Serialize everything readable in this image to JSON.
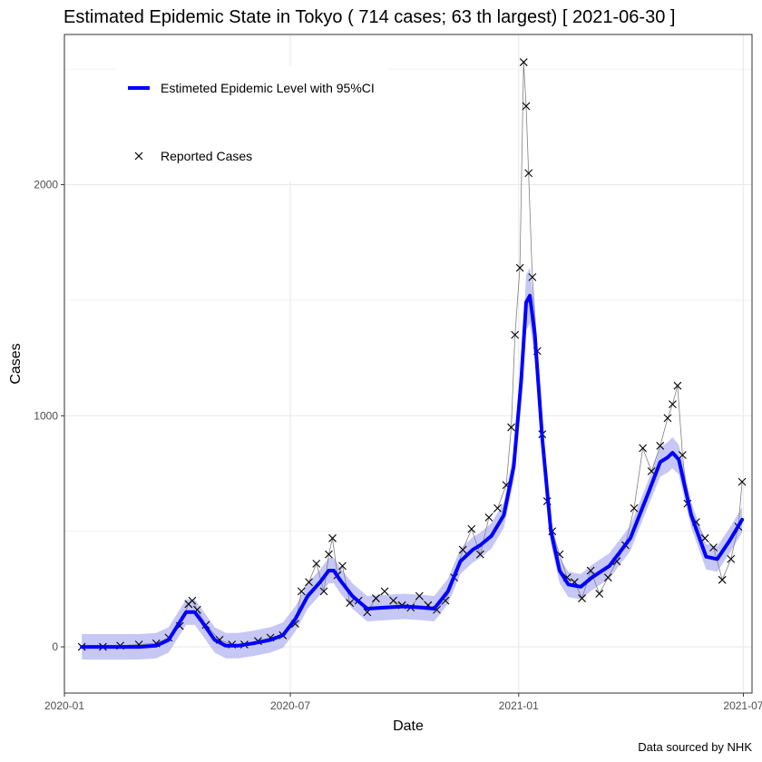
{
  "chart_data": {
    "type": "line",
    "title": "Estimated Epidemic State in Tokyo  ( 714 cases; 63 th largest) [ 2021-06-30 ]",
    "xlabel": "Date",
    "ylabel": "Cases",
    "caption": "Data sourced by NHK",
    "x_ticks": [
      "2020-01",
      "2020-07",
      "2021-01",
      "2021-07"
    ],
    "y_ticks": [
      "0",
      "1000",
      "2000"
    ],
    "xlim": [
      "2020-01-01",
      "2021-07-08"
    ],
    "ylim": [
      -200,
      2650
    ],
    "grid": true,
    "legend_position": "top-left",
    "colors": {
      "estimate": "#0000ff",
      "ci_band": "#9999ee",
      "raw_line": "#808080",
      "points": "#000000"
    },
    "series": [
      {
        "name": "Estimeted Epidemic Level with 95%CI",
        "kind": "line",
        "x": [
          "2020-01-15",
          "2020-02-01",
          "2020-02-15",
          "2020-03-01",
          "2020-03-15",
          "2020-03-25",
          "2020-04-01",
          "2020-04-08",
          "2020-04-15",
          "2020-04-22",
          "2020-05-01",
          "2020-05-10",
          "2020-05-20",
          "2020-06-01",
          "2020-06-15",
          "2020-06-25",
          "2020-07-05",
          "2020-07-15",
          "2020-07-25",
          "2020-08-01",
          "2020-08-05",
          "2020-08-10",
          "2020-08-20",
          "2020-09-01",
          "2020-09-15",
          "2020-10-01",
          "2020-10-15",
          "2020-10-25",
          "2020-11-05",
          "2020-11-15",
          "2020-11-25",
          "2020-12-01",
          "2020-12-10",
          "2020-12-20",
          "2020-12-28",
          "2021-01-03",
          "2021-01-07",
          "2021-01-10",
          "2021-01-14",
          "2021-01-20",
          "2021-01-27",
          "2021-02-03",
          "2021-02-10",
          "2021-02-20",
          "2021-03-01",
          "2021-03-15",
          "2021-04-01",
          "2021-04-15",
          "2021-04-25",
          "2021-05-01",
          "2021-05-05",
          "2021-05-10",
          "2021-05-20",
          "2021-06-01",
          "2021-06-10",
          "2021-06-20",
          "2021-06-30"
        ],
        "y": [
          0,
          0,
          0,
          0,
          5,
          30,
          90,
          150,
          150,
          100,
          30,
          5,
          5,
          15,
          30,
          50,
          120,
          220,
          280,
          330,
          330,
          290,
          220,
          165,
          170,
          175,
          170,
          165,
          240,
          370,
          420,
          440,
          480,
          570,
          780,
          1150,
          1490,
          1520,
          1350,
          900,
          500,
          330,
          270,
          260,
          300,
          350,
          470,
          660,
          800,
          820,
          840,
          810,
          570,
          390,
          380,
          460,
          550
        ]
      },
      {
        "name": "Reported Cases",
        "kind": "scatter",
        "x": [
          "2020-01-15",
          "2020-02-01",
          "2020-02-15",
          "2020-03-01",
          "2020-03-15",
          "2020-03-25",
          "2020-04-03",
          "2020-04-10",
          "2020-04-13",
          "2020-04-17",
          "2020-04-24",
          "2020-05-05",
          "2020-05-15",
          "2020-05-25",
          "2020-06-05",
          "2020-06-15",
          "2020-06-25",
          "2020-07-05",
          "2020-07-10",
          "2020-07-16",
          "2020-07-22",
          "2020-07-28",
          "2020-08-01",
          "2020-08-04",
          "2020-08-08",
          "2020-08-12",
          "2020-08-18",
          "2020-08-25",
          "2020-09-01",
          "2020-09-08",
          "2020-09-15",
          "2020-09-22",
          "2020-09-29",
          "2020-10-06",
          "2020-10-13",
          "2020-10-20",
          "2020-10-27",
          "2020-11-03",
          "2020-11-10",
          "2020-11-17",
          "2020-11-24",
          "2020-12-01",
          "2020-12-08",
          "2020-12-15",
          "2020-12-22",
          "2020-12-26",
          "2020-12-29",
          "2021-01-02",
          "2021-01-05",
          "2021-01-07",
          "2021-01-09",
          "2021-01-12",
          "2021-01-16",
          "2021-01-20",
          "2021-01-24",
          "2021-01-28",
          "2021-02-03",
          "2021-02-09",
          "2021-02-15",
          "2021-02-21",
          "2021-02-28",
          "2021-03-07",
          "2021-03-14",
          "2021-03-21",
          "2021-03-28",
          "2021-04-04",
          "2021-04-11",
          "2021-04-18",
          "2021-04-25",
          "2021-05-01",
          "2021-05-05",
          "2021-05-09",
          "2021-05-13",
          "2021-05-17",
          "2021-05-24",
          "2021-05-31",
          "2021-06-07",
          "2021-06-14",
          "2021-06-21",
          "2021-06-27",
          "2021-06-30"
        ],
        "y": [
          0,
          0,
          5,
          10,
          15,
          40,
          90,
          185,
          200,
          160,
          95,
          30,
          10,
          10,
          25,
          40,
          50,
          100,
          240,
          280,
          360,
          240,
          400,
          470,
          310,
          350,
          190,
          200,
          150,
          210,
          240,
          200,
          180,
          170,
          220,
          180,
          160,
          200,
          300,
          420,
          510,
          400,
          560,
          600,
          700,
          950,
          1350,
          1640,
          2530,
          2340,
          2050,
          1600,
          1280,
          920,
          630,
          500,
          400,
          300,
          280,
          210,
          330,
          230,
          300,
          370,
          440,
          600,
          860,
          760,
          870,
          990,
          1050,
          1130,
          830,
          620,
          540,
          470,
          430,
          290,
          380,
          520,
          714
        ]
      }
    ]
  }
}
